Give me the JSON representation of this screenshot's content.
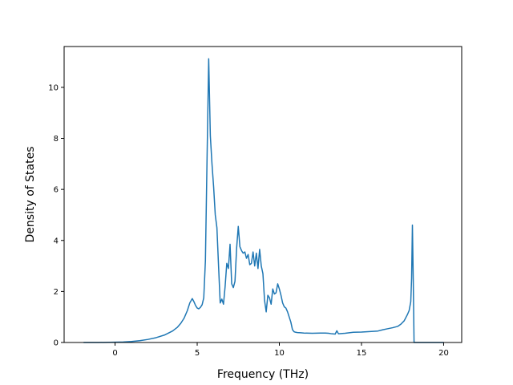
{
  "chart_data": {
    "type": "line",
    "title": "",
    "xlabel": "Frequency (THz)",
    "ylabel": "Density of States",
    "xlim": [
      -3.1,
      21.1
    ],
    "ylim": [
      0,
      11.6
    ],
    "xticks": [
      0,
      5,
      10,
      15,
      20
    ],
    "yticks": [
      0,
      2,
      4,
      6,
      8,
      10
    ],
    "grid": false,
    "legend": "none",
    "line_color": "#1f77b4",
    "series": [
      {
        "x": [
          -1.9,
          -1.0,
          0.0,
          0.5,
          1.0,
          1.5,
          2.0,
          2.5,
          3.0,
          3.5,
          3.8,
          4.0,
          4.2,
          4.4,
          4.55,
          4.7,
          4.8,
          4.9,
          5.0,
          5.1,
          5.2,
          5.3,
          5.4,
          5.5,
          5.6,
          5.7,
          5.8,
          5.9,
          6.0,
          6.1,
          6.2,
          6.3,
          6.4,
          6.5,
          6.6,
          6.7,
          6.8,
          6.9,
          7.0,
          7.1,
          7.2,
          7.3,
          7.4,
          7.5,
          7.6,
          7.7,
          7.8,
          7.9,
          8.0,
          8.1,
          8.2,
          8.3,
          8.4,
          8.5,
          8.6,
          8.7,
          8.8,
          8.9,
          9.0,
          9.1,
          9.2,
          9.3,
          9.4,
          9.5,
          9.6,
          9.7,
          9.8,
          9.9,
          10.0,
          10.1,
          10.2,
          10.3,
          10.4,
          10.5,
          10.6,
          10.7,
          10.8,
          10.9,
          11.0,
          11.1,
          11.3,
          11.5,
          12.0,
          12.5,
          12.8,
          13.0,
          13.2,
          13.4,
          13.5,
          13.6,
          14.0,
          14.5,
          15.0,
          15.5,
          16.0,
          16.3,
          16.6,
          16.9,
          17.2,
          17.4,
          17.6,
          17.8,
          17.9,
          18.0,
          18.05,
          18.1,
          18.15,
          18.2,
          18.3,
          19.0,
          20.0
        ],
        "values": [
          0.0,
          0.0,
          0.01,
          0.02,
          0.04,
          0.07,
          0.12,
          0.19,
          0.29,
          0.45,
          0.6,
          0.75,
          0.95,
          1.25,
          1.55,
          1.72,
          1.6,
          1.45,
          1.35,
          1.32,
          1.38,
          1.48,
          1.75,
          3.2,
          7.2,
          11.12,
          8.1,
          7.0,
          6.1,
          5.0,
          4.5,
          3.0,
          1.55,
          1.7,
          1.5,
          2.2,
          3.1,
          2.9,
          3.85,
          2.3,
          2.15,
          2.4,
          3.7,
          4.55,
          3.75,
          3.6,
          3.5,
          3.55,
          3.3,
          3.45,
          3.05,
          3.1,
          3.55,
          3.0,
          3.5,
          2.9,
          3.65,
          3.0,
          2.7,
          1.65,
          1.2,
          1.85,
          1.75,
          1.5,
          2.1,
          1.9,
          1.95,
          2.3,
          2.1,
          1.85,
          1.55,
          1.4,
          1.35,
          1.2,
          1.0,
          0.8,
          0.5,
          0.42,
          0.4,
          0.39,
          0.38,
          0.37,
          0.36,
          0.37,
          0.37,
          0.36,
          0.34,
          0.33,
          0.46,
          0.34,
          0.36,
          0.4,
          0.41,
          0.43,
          0.45,
          0.5,
          0.54,
          0.58,
          0.63,
          0.72,
          0.85,
          1.1,
          1.25,
          1.6,
          2.5,
          4.6,
          2.5,
          0.0,
          0.0,
          0.0,
          0.0
        ]
      }
    ]
  }
}
